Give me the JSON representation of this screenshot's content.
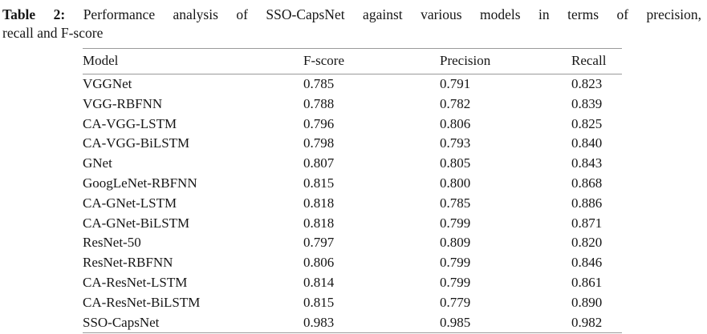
{
  "caption": {
    "label": "Table 2:",
    "line1": "Performance analysis of SSO-CapsNet against various models in terms of precision,",
    "line2": "recall and F-score"
  },
  "table": {
    "columns": [
      "Model",
      "F-score",
      "Precision",
      "Recall"
    ],
    "rows": [
      [
        "VGGNet",
        "0.785",
        "0.791",
        "0.823"
      ],
      [
        "VGG-RBFNN",
        "0.788",
        "0.782",
        "0.839"
      ],
      [
        "CA-VGG-LSTM",
        "0.796",
        "0.806",
        "0.825"
      ],
      [
        "CA-VGG-BiLSTM",
        "0.798",
        "0.793",
        "0.840"
      ],
      [
        "GNet",
        "0.807",
        "0.805",
        "0.843"
      ],
      [
        "GoogLeNet-RBFNN",
        "0.815",
        "0.800",
        "0.868"
      ],
      [
        "CA-GNet-LSTM",
        "0.818",
        "0.785",
        "0.886"
      ],
      [
        "CA-GNet-BiLSTM",
        "0.818",
        "0.799",
        "0.871"
      ],
      [
        "ResNet-50",
        "0.797",
        "0.809",
        "0.820"
      ],
      [
        "ResNet-RBFNN",
        "0.806",
        "0.799",
        "0.846"
      ],
      [
        "CA-ResNet-LSTM",
        "0.814",
        "0.799",
        "0.861"
      ],
      [
        "CA-ResNet-BiLSTM",
        "0.815",
        "0.779",
        "0.890"
      ],
      [
        "SSO-CapsNet",
        "0.983",
        "0.985",
        "0.982"
      ]
    ]
  }
}
